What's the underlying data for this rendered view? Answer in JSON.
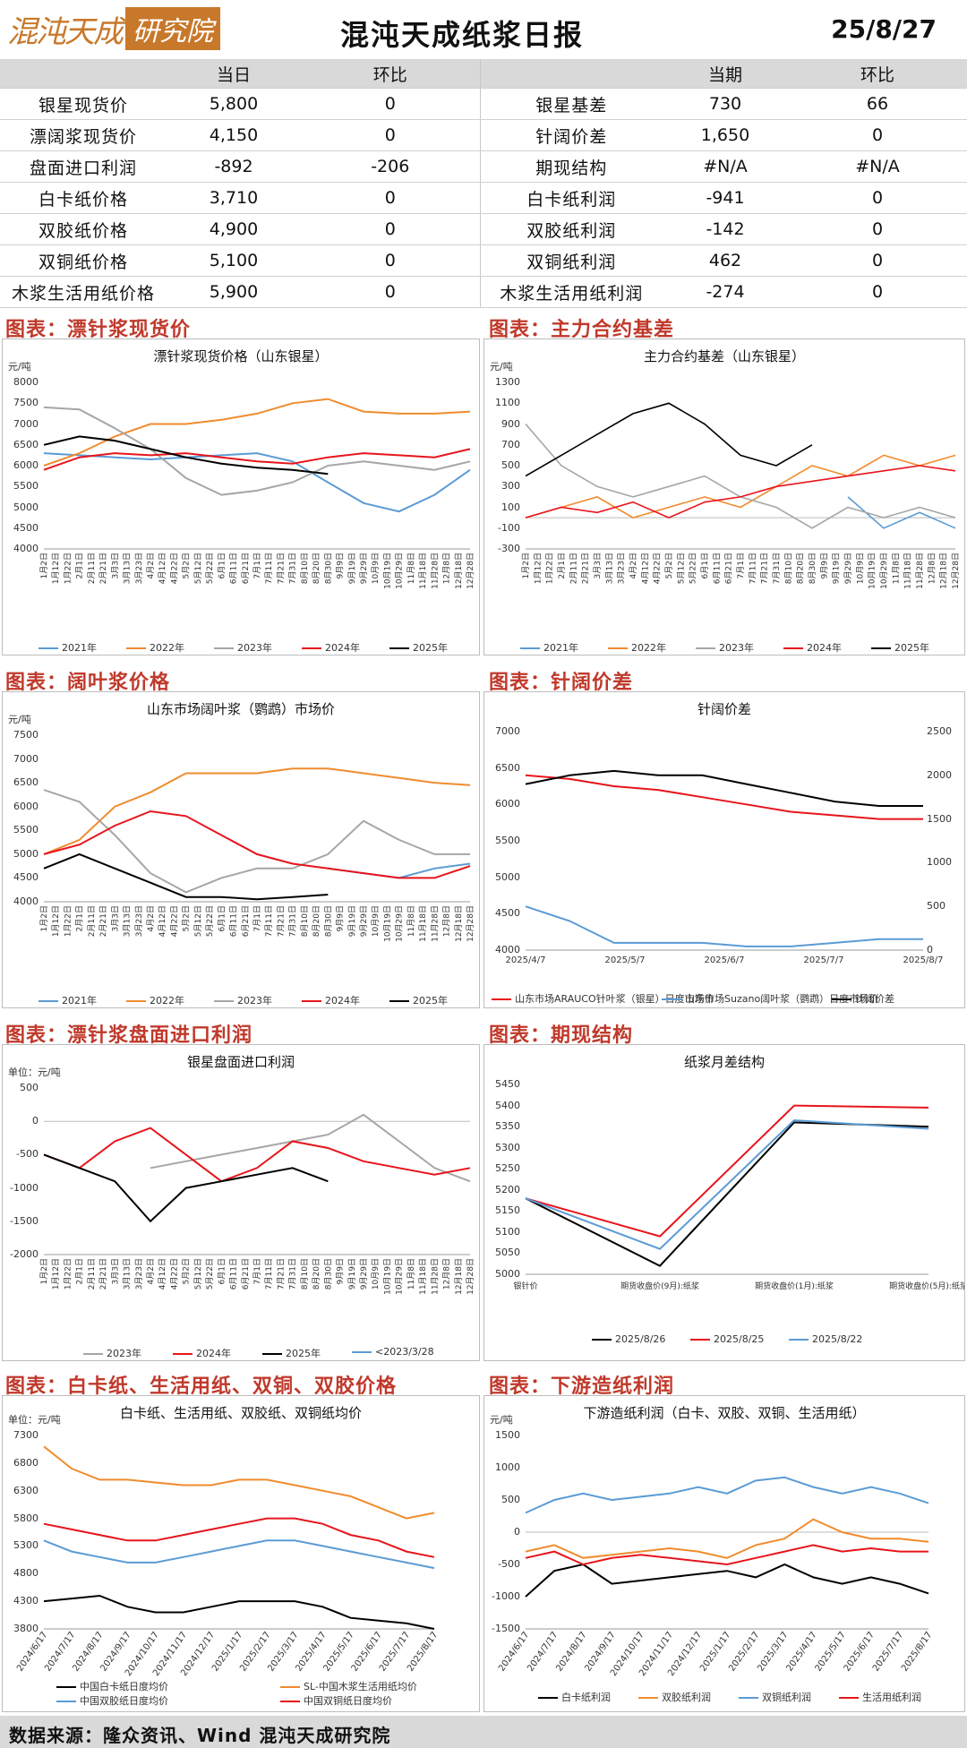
{
  "header": {
    "logo_left": "混沌天成",
    "logo_right": "研究院",
    "title": "混沌天成纸浆日报",
    "date": "25/8/27"
  },
  "summary": {
    "headers": {
      "today": "当日",
      "change": "环比",
      "period": "当期",
      "change2": "环比"
    },
    "rows": [
      {
        "l1": "银星现货价",
        "v1": "5,800",
        "c1": "0",
        "l2": "银星基差",
        "v2": "730",
        "c2": "66"
      },
      {
        "l1": "漂阔浆现货价",
        "v1": "4,150",
        "c1": "0",
        "l2": "针阔价差",
        "v2": "1,650",
        "c2": "0"
      },
      {
        "l1": "盘面进口利润",
        "v1": "-892",
        "c1": "-206",
        "l2": "期现结构",
        "v2": "#N/A",
        "c2": "#N/A"
      },
      {
        "l1": "白卡纸价格",
        "v1": "3,710",
        "c1": "0",
        "l2": "白卡纸利润",
        "v2": "-941",
        "c2": "0"
      },
      {
        "l1": "双胶纸价格",
        "v1": "4,900",
        "c1": "0",
        "l2": "双胶纸利润",
        "v2": "-142",
        "c2": "0"
      },
      {
        "l1": "双铜纸价格",
        "v1": "5,100",
        "c1": "0",
        "l2": "双铜纸利润",
        "v2": "462",
        "c2": "0"
      },
      {
        "l1": "木浆生活用纸价格",
        "v1": "5,900",
        "c1": "0",
        "l2": "木浆生活用纸利润",
        "v2": "-274",
        "c2": "0"
      }
    ]
  },
  "sections": {
    "s1": "图表：漂针浆现货价",
    "s2": "图表：主力合约基差",
    "s3": "图表：阔叶浆价格",
    "s4": "图表：针阔价差",
    "s5": "图表：漂针浆盘面进口利润",
    "s6": "图表：期现结构",
    "s7": "图表：白卡纸、生活用纸、双铜、双胶价格",
    "s8": "图表：下游造纸利润"
  },
  "colors": {
    "red": "#e8141c",
    "orange": "#f08c2e",
    "gray": "#a6a6a6",
    "blue": "#5b9bd5",
    "black": "#000000",
    "accent": "#c0392b"
  },
  "chart_data": [
    {
      "type": "line",
      "title": "漂针浆现货价格（山东银星）",
      "ylabel": "元/吨",
      "ylim": [
        4000,
        8000
      ],
      "yticks": [
        "8000",
        "7500",
        "7000",
        "6500",
        "6000",
        "5500",
        "5000",
        "4500",
        "4000"
      ],
      "series": [
        {
          "name": "2021年",
          "color": "#5b9bd5",
          "values": [
            6300,
            6250,
            6200,
            6150,
            6200,
            6250,
            6300,
            6100,
            5600,
            5100,
            4900,
            5300,
            5900
          ]
        },
        {
          "name": "2022年",
          "color": "#f08c2e",
          "values": [
            6000,
            6300,
            6700,
            7000,
            7000,
            7100,
            7250,
            7500,
            7600,
            7300,
            7250,
            7250,
            7300
          ]
        },
        {
          "name": "2023年",
          "color": "#a6a6a6",
          "values": [
            7400,
            7350,
            6900,
            6400,
            5700,
            5300,
            5400,
            5600,
            6000,
            6100,
            6000,
            5900,
            6100
          ]
        },
        {
          "name": "2024年",
          "color": "#e8141c",
          "values": [
            5900,
            6200,
            6300,
            6250,
            6300,
            6200,
            6100,
            6050,
            6200,
            6300,
            6250,
            6200,
            6400
          ]
        },
        {
          "name": "2025年",
          "color": "#000000",
          "values": [
            6500,
            6700,
            6600,
            6400,
            6200,
            6050,
            5950,
            5900,
            5800
          ]
        }
      ]
    },
    {
      "type": "line",
      "title": "主力合约基差（山东银星）",
      "ylabel": "元/吨",
      "ylim": [
        -300,
        1300
      ],
      "yticks": [
        "1300",
        "1100",
        "900",
        "700",
        "500",
        "300",
        "100",
        "-100",
        "-300"
      ],
      "series": [
        {
          "name": "2021年",
          "color": "#5b9bd5",
          "values": [
            null,
            null,
            null,
            null,
            null,
            null,
            null,
            null,
            null,
            200,
            -100,
            50,
            -100
          ]
        },
        {
          "name": "2022年",
          "color": "#f08c2e",
          "values": [
            0,
            100,
            200,
            0,
            100,
            200,
            100,
            300,
            500,
            400,
            600,
            500,
            600
          ]
        },
        {
          "name": "2023年",
          "color": "#a6a6a6",
          "values": [
            900,
            500,
            300,
            200,
            300,
            400,
            200,
            100,
            -100,
            100,
            0,
            100,
            0
          ]
        },
        {
          "name": "2024年",
          "color": "#e8141c",
          "values": [
            0,
            100,
            50,
            150,
            0,
            150,
            200,
            300,
            350,
            400,
            450,
            500,
            450
          ]
        },
        {
          "name": "2025年",
          "color": "#000000",
          "values": [
            400,
            600,
            800,
            1000,
            1100,
            900,
            600,
            500,
            700
          ]
        }
      ]
    },
    {
      "type": "line",
      "title": "山东市场阔叶浆（鹦鹉）市场价",
      "ylabel": "元/吨",
      "ylim": [
        4000,
        7500
      ],
      "yticks": [
        "7500",
        "7000",
        "6500",
        "6000",
        "5500",
        "5000",
        "4500",
        "4000"
      ],
      "series": [
        {
          "name": "2021年",
          "color": "#5b9bd5",
          "values": [
            null,
            null,
            null,
            null,
            null,
            null,
            null,
            null,
            4700,
            4600,
            4500,
            4700,
            4800
          ]
        },
        {
          "name": "2022年",
          "color": "#f08c2e",
          "values": [
            5000,
            5300,
            6000,
            6300,
            6700,
            6700,
            6700,
            6800,
            6800,
            6700,
            6600,
            6500,
            6450
          ]
        },
        {
          "name": "2023年",
          "color": "#a6a6a6",
          "values": [
            6350,
            6100,
            5400,
            4600,
            4200,
            4500,
            4700,
            4700,
            5000,
            5700,
            5300,
            5000,
            5000
          ]
        },
        {
          "name": "2024年",
          "color": "#e8141c",
          "values": [
            5000,
            5200,
            5600,
            5900,
            5800,
            5400,
            5000,
            4800,
            4700,
            4600,
            4500,
            4500,
            4750
          ]
        },
        {
          "name": "2025年",
          "color": "#000000",
          "values": [
            4700,
            5000,
            4700,
            4400,
            4100,
            4100,
            4050,
            4100,
            4150
          ]
        }
      ]
    },
    {
      "type": "line",
      "title": "针阔价差",
      "ylim": [
        4000,
        7000
      ],
      "y2lim": [
        0,
        2500
      ],
      "yticks": [
        "7000",
        "6500",
        "6000",
        "5500",
        "5000",
        "4500",
        "4000"
      ],
      "y2ticks": [
        "2500",
        "2000",
        "1500",
        "1000",
        "500",
        "0"
      ],
      "xticks": [
        "2025/4/7",
        "2025/5/7",
        "2025/6/7",
        "2025/7/7",
        "2025/8/7"
      ],
      "series": [
        {
          "name": "山东市场ARAUCO针叶浆（银星）日度市场价",
          "color": "#e8141c",
          "values": [
            6400,
            6350,
            6250,
            6200,
            6100,
            6000,
            5900,
            5850,
            5800,
            5800
          ]
        },
        {
          "name": "山东市场Suzano阔叶浆（鹦鹉）日度市场价",
          "color": "#5b9bd5",
          "values": [
            4600,
            4400,
            4100,
            4100,
            4100,
            4050,
            4050,
            4100,
            4150,
            4150
          ]
        },
        {
          "name": "针阔价差",
          "color": "#000000",
          "values": [
            1900,
            2000,
            2050,
            2000,
            2000,
            1900,
            1800,
            1700,
            1650,
            1650
          ]
        }
      ]
    },
    {
      "type": "line",
      "title": "银星盘面进口利润",
      "ylabel": "单位：元/吨",
      "ylim": [
        -2000,
        500
      ],
      "yticks": [
        "500",
        "0",
        "-500",
        "-1000",
        "-1500",
        "-2000"
      ],
      "series": [
        {
          "name": "2023年",
          "color": "#a6a6a6",
          "values": [
            null,
            null,
            null,
            -700,
            -600,
            -500,
            -400,
            -300,
            -200,
            100,
            -300,
            -700,
            -900
          ]
        },
        {
          "name": "2024年",
          "color": "#e8141c",
          "values": [
            -500,
            -700,
            -300,
            -100,
            -500,
            -900,
            -700,
            -300,
            -400,
            -600,
            -700,
            -800,
            -700
          ]
        },
        {
          "name": "2025年",
          "color": "#000000",
          "values": [
            -500,
            -700,
            -900,
            -1500,
            -1000,
            -900,
            -800,
            -700,
            -900
          ]
        },
        {
          "name": "<2023/3/28",
          "color": "#5b9bd5",
          "values": []
        }
      ]
    },
    {
      "type": "line",
      "title": "纸浆月差结构",
      "ylim": [
        5000,
        5450
      ],
      "yticks": [
        "5450",
        "5400",
        "5350",
        "5300",
        "5250",
        "5200",
        "5150",
        "5100",
        "5050",
        "5000"
      ],
      "categories": [
        "银针价",
        "期货收盘价(9月):纸浆",
        "期货收盘价(1月):纸浆",
        "期货收盘价(5月):纸浆"
      ],
      "series": [
        {
          "name": "2025/8/26",
          "color": "#000000",
          "values": [
            5180,
            5020,
            5360,
            5350
          ]
        },
        {
          "name": "2025/8/25",
          "color": "#e8141c",
          "values": [
            5180,
            5090,
            5400,
            5395
          ]
        },
        {
          "name": "2025/8/22",
          "color": "#5b9bd5",
          "values": [
            5180,
            5060,
            5365,
            5345
          ]
        }
      ]
    },
    {
      "type": "line",
      "title": "白卡纸、生活用纸、双胶纸、双铜纸均价",
      "ylabel": "单位：元/吨",
      "ylim": [
        3800,
        7300
      ],
      "yticks": [
        "7300",
        "6800",
        "6300",
        "5800",
        "5300",
        "4800",
        "4300",
        "3800"
      ],
      "xticks": [
        "2024/6/17",
        "2024/7/17",
        "2024/8/17",
        "2024/9/17",
        "2024/10/17",
        "2024/11/17",
        "2024/12/17",
        "2025/1/17",
        "2025/2/17",
        "2025/3/17",
        "2025/4/17",
        "2025/5/17",
        "2025/6/17",
        "2025/7/17",
        "2025/8/17"
      ],
      "series": [
        {
          "name": "中国白卡纸日度均价",
          "color": "#000000",
          "values": [
            4300,
            4350,
            4400,
            4200,
            4100,
            4100,
            4200,
            4300,
            4300,
            4300,
            4200,
            4000,
            3950,
            3900,
            3800
          ]
        },
        {
          "name": "SL-中国木浆生活用纸均价",
          "color": "#f08c2e",
          "values": [
            7100,
            6700,
            6500,
            6500,
            6450,
            6400,
            6400,
            6500,
            6500,
            6400,
            6300,
            6200,
            6000,
            5800,
            5900
          ]
        },
        {
          "name": "中国双胶纸日度均价",
          "color": "#5b9bd5",
          "values": [
            5400,
            5200,
            5100,
            5000,
            5000,
            5100,
            5200,
            5300,
            5400,
            5400,
            5300,
            5200,
            5100,
            5000,
            4900
          ]
        },
        {
          "name": "中国双铜纸日度均价",
          "color": "#e8141c",
          "values": [
            5700,
            5600,
            5500,
            5400,
            5400,
            5500,
            5600,
            5700,
            5800,
            5800,
            5700,
            5500,
            5400,
            5200,
            5100
          ]
        }
      ]
    },
    {
      "type": "line",
      "title": "下游造纸利润（白卡、双胶、双铜、生活用纸）",
      "ylabel": "元/吨",
      "ylim": [
        -1500,
        1500
      ],
      "yticks": [
        "1500",
        "1000",
        "500",
        "0",
        "-500",
        "-1000",
        "-1500"
      ],
      "xticks": [
        "2024/6/17",
        "2024/7/17",
        "2024/8/17",
        "2024/9/17",
        "2024/10/17",
        "2024/11/17",
        "2024/12/17",
        "2025/1/17",
        "2025/2/17",
        "2025/3/17",
        "2025/4/17",
        "2025/5/17",
        "2025/6/17",
        "2025/7/17",
        "2025/8/17"
      ],
      "series": [
        {
          "name": "白卡纸利润",
          "color": "#000000",
          "values": [
            -1000,
            -600,
            -500,
            -800,
            -750,
            -700,
            -650,
            -600,
            -700,
            -500,
            -700,
            -800,
            -700,
            -800,
            -950
          ]
        },
        {
          "name": "双胶纸利润",
          "color": "#f08c2e",
          "values": [
            -300,
            -200,
            -400,
            -350,
            -300,
            -250,
            -300,
            -400,
            -200,
            -100,
            200,
            0,
            -100,
            -100,
            -150
          ]
        },
        {
          "name": "双铜纸利润",
          "color": "#5b9bd5",
          "values": [
            300,
            500,
            600,
            500,
            550,
            600,
            700,
            600,
            800,
            850,
            700,
            600,
            700,
            600,
            450
          ]
        },
        {
          "name": "生活用纸利润",
          "color": "#e8141c",
          "values": [
            -400,
            -300,
            -500,
            -400,
            -350,
            -400,
            -450,
            -500,
            -400,
            -300,
            -200,
            -300,
            -250,
            -300,
            -300
          ]
        }
      ]
    }
  ],
  "xlabels_date": [
    "1月2日",
    "1月12日",
    "1月22日",
    "2月1日",
    "2月11日",
    "2月21日",
    "3月3日",
    "3月13日",
    "3月23日",
    "4月2日",
    "4月12日",
    "4月22日",
    "5月2日",
    "5月12日",
    "5月22日",
    "6月1日",
    "6月11日",
    "6月21日",
    "7月1日",
    "7月11日",
    "7月21日",
    "7月31日",
    "8月10日",
    "8月20日",
    "8月30日",
    "9月9日",
    "9月19日",
    "9月29日",
    "10月9日",
    "10月19日",
    "10月29日",
    "11月8日",
    "11月18日",
    "11月28日",
    "12月8日",
    "12月18日",
    "12月28日"
  ],
  "footer": "数据来源：隆众资讯、Wind   混沌天成研究院"
}
